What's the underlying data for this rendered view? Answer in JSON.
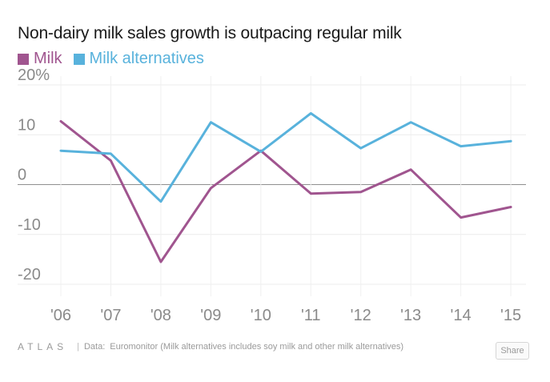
{
  "chart_data": {
    "type": "line",
    "title": "Non-dairy milk sales growth is outpacing regular milk",
    "categories": [
      "'06",
      "'07",
      "'08",
      "'09",
      "'10",
      "'11",
      "'12",
      "'13",
      "'14",
      "'15"
    ],
    "series": [
      {
        "name": "Milk",
        "color": "#a0558f",
        "values": [
          12.7,
          4.8,
          -15.5,
          -0.7,
          6.8,
          -1.8,
          -1.5,
          3.0,
          -6.6,
          -4.5
        ]
      },
      {
        "name": "Milk alternatives",
        "color": "#58b2dc",
        "values": [
          6.8,
          6.2,
          -3.4,
          12.5,
          6.6,
          14.3,
          7.3,
          12.5,
          7.7,
          8.7
        ]
      }
    ],
    "y_ticks": [
      "20%",
      "10",
      "0",
      "-10",
      "-20"
    ],
    "ylim": [
      -20,
      20
    ],
    "grid": true,
    "legend_position": "top-left"
  },
  "footer": {
    "logo": "ATLAS",
    "separator": "|",
    "source_label": "Data:",
    "source_text": "Euromonitor (Milk alternatives includes soy milk and other milk alternatives)"
  },
  "share_label": "Share"
}
